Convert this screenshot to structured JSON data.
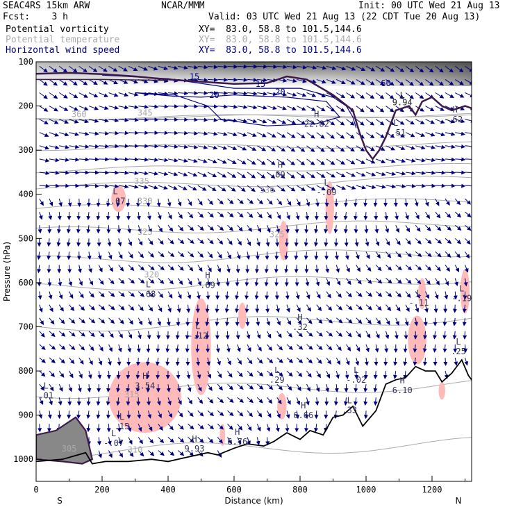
{
  "header": {
    "model": "SEAC4RS 15km ARW",
    "center": "NCAR/MMM",
    "init": "Init: 00 UTC Wed 21 Aug 13",
    "fcst_label": "Fcst:",
    "fcst_value": "3 h",
    "valid": "Valid: 03 UTC Wed 21 Aug 13 (22 CDT Tue 20 Aug 13)",
    "fields": [
      {
        "name": "Potential vorticity",
        "xy": "XY=  83.0, 58.8 to 101.5,144.6",
        "color": "#000000"
      },
      {
        "name": "Potential temperature",
        "xy": "XY=  83.0, 58.8 to 101.5,144.6",
        "color": "#aaaaaa"
      },
      {
        "name": "Horizontal wind speed",
        "xy": "XY=  83.0, 58.8 to 101.5,144.6",
        "color": "#000080"
      }
    ]
  },
  "chart_data": {
    "type": "cross-section",
    "xlabel": "Distance (km)",
    "ylabel": "Pressure (hPa)",
    "xlim": [
      0,
      1320
    ],
    "ylim": [
      1050,
      100
    ],
    "x_ticks": [
      "0",
      "200",
      "400",
      "600",
      "800",
      "1000",
      "1200"
    ],
    "x_tick_values": [
      0,
      200,
      400,
      600,
      800,
      1000,
      1200
    ],
    "y_ticks": [
      "100",
      "200",
      "300",
      "400",
      "500",
      "600",
      "700",
      "800",
      "900",
      "1000"
    ],
    "y_tick_values": [
      100,
      200,
      300,
      400,
      500,
      600,
      700,
      800,
      900,
      1000
    ],
    "endpoints": {
      "left": "S",
      "right": "N"
    },
    "colors": {
      "terrain": "#000000",
      "pv_contour": "#3d1a4a",
      "wind_speed": "#000080",
      "theta": "#aaaaaa",
      "shading": "#ffb6b6",
      "vectors": "#000080"
    },
    "terrain": [
      {
        "x": 0,
        "p": 1005
      },
      {
        "x": 80,
        "p": 1000
      },
      {
        "x": 150,
        "p": 985
      },
      {
        "x": 170,
        "p": 1010
      },
      {
        "x": 210,
        "p": 1005
      },
      {
        "x": 280,
        "p": 1005
      },
      {
        "x": 350,
        "p": 1000
      },
      {
        "x": 400,
        "p": 1005
      },
      {
        "x": 460,
        "p": 995
      },
      {
        "x": 520,
        "p": 985
      },
      {
        "x": 550,
        "p": 990
      },
      {
        "x": 600,
        "p": 975
      },
      {
        "x": 640,
        "p": 965
      },
      {
        "x": 690,
        "p": 970
      },
      {
        "x": 720,
        "p": 960
      },
      {
        "x": 760,
        "p": 940
      },
      {
        "x": 800,
        "p": 955
      },
      {
        "x": 830,
        "p": 935
      },
      {
        "x": 870,
        "p": 945
      },
      {
        "x": 900,
        "p": 905
      },
      {
        "x": 930,
        "p": 900
      },
      {
        "x": 960,
        "p": 880
      },
      {
        "x": 990,
        "p": 925
      },
      {
        "x": 1030,
        "p": 890
      },
      {
        "x": 1060,
        "p": 830
      },
      {
        "x": 1090,
        "p": 820
      },
      {
        "x": 1120,
        "p": 815
      },
      {
        "x": 1150,
        "p": 790
      },
      {
        "x": 1180,
        "p": 800
      },
      {
        "x": 1210,
        "p": 800
      },
      {
        "x": 1230,
        "p": 825
      },
      {
        "x": 1260,
        "p": 805
      },
      {
        "x": 1290,
        "p": 775
      },
      {
        "x": 1310,
        "p": 810
      },
      {
        "x": 1320,
        "p": 820
      }
    ],
    "theta_labels": [
      {
        "text": "360",
        "x": 130,
        "p": 225
      },
      {
        "text": "345",
        "x": 330,
        "p": 222
      },
      {
        "text": "335",
        "x": 320,
        "p": 377
      },
      {
        "text": "330",
        "x": 330,
        "p": 422
      },
      {
        "text": "330",
        "x": 700,
        "p": 397
      },
      {
        "text": "325",
        "x": 330,
        "p": 492
      },
      {
        "text": "325",
        "x": 730,
        "p": 497
      },
      {
        "text": "320",
        "x": 350,
        "p": 588
      },
      {
        "text": "315",
        "x": 290,
        "p": 860
      },
      {
        "text": "310",
        "x": 300,
        "p": 985
      },
      {
        "text": "305",
        "x": 100,
        "p": 982
      }
    ],
    "theta_lines_p": [
      228,
      228,
      295,
      345,
      385,
      435,
      485,
      550,
      610,
      700,
      850,
      985
    ],
    "wind_speed_labels": [
      {
        "text": "15",
        "x": 480,
        "p": 140
      },
      {
        "text": "15",
        "x": 680,
        "p": 157
      },
      {
        "text": "20",
        "x": 540,
        "p": 182
      },
      {
        "text": "20",
        "x": 740,
        "p": 175
      },
      {
        "text": "60",
        "x": 1060,
        "p": 155
      }
    ],
    "pv_labels": [
      {
        "text": "L",
        "x": 1110,
        "p": 182
      },
      {
        "text": "9.94",
        "x": 1110,
        "p": 198
      }
    ],
    "extrema": [
      {
        "kind": "H",
        "value": "22.82",
        "x": 850,
        "p": 225
      },
      {
        "kind": "H",
        "value": "89",
        "x": 740,
        "p": 340
      },
      {
        "kind": "L",
        "value": "-.07",
        "x": 240,
        "p": 400
      },
      {
        "kind": "L",
        "value": "-.09",
        "x": 880,
        "p": 380
      },
      {
        "kind": "L",
        "value": "-.51",
        "x": 1090,
        "p": 245
      },
      {
        "kind": "H",
        "value": ".62",
        "x": 1270,
        "p": 215
      },
      {
        "kind": "L",
        "value": ".68",
        "x": 340,
        "p": 610
      },
      {
        "kind": "H",
        "value": ".69",
        "x": 520,
        "p": 590
      },
      {
        "kind": "L",
        "value": "-.12",
        "x": 490,
        "p": 705
      },
      {
        "kind": "H",
        "value": ".32",
        "x": 800,
        "p": 685
      },
      {
        "kind": "L",
        "value": "-.11",
        "x": 1160,
        "p": 630
      },
      {
        "kind": "L",
        "value": "-.19",
        "x": 1290,
        "p": 620
      },
      {
        "kind": "L",
        "value": ".25",
        "x": 1280,
        "p": 740
      },
      {
        "kind": "H",
        "value": "3.54",
        "x": 330,
        "p": 818
      },
      {
        "kind": "L",
        "value": ".29",
        "x": 730,
        "p": 805
      },
      {
        "kind": "L",
        "value": "-.02",
        "x": 970,
        "p": 805
      },
      {
        "kind": "H",
        "value": "6.10",
        "x": 1110,
        "p": 828
      },
      {
        "kind": "L",
        "value": ".01",
        "x": 30,
        "p": 840
      },
      {
        "kind": "H",
        "value": "6.66",
        "x": 810,
        "p": 885
      },
      {
        "kind": "L",
        "value": ".33",
        "x": 950,
        "p": 873
      },
      {
        "kind": "L",
        "value": ".15",
        "x": 260,
        "p": 910
      },
      {
        "kind": "L",
        "value": "-.07",
        "x": 235,
        "p": 948
      },
      {
        "kind": "H",
        "value": "9.93",
        "x": 480,
        "p": 960
      },
      {
        "kind": "H",
        "value": "6.76",
        "x": 610,
        "p": 945
      }
    ],
    "shaded_regions": [
      {
        "cx": 250,
        "cp": 410,
        "rx": 22,
        "rp": 30
      },
      {
        "cx": 500,
        "cp": 745,
        "rx": 30,
        "rp": 110
      },
      {
        "cx": 330,
        "cp": 860,
        "rx": 110,
        "rp": 80
      },
      {
        "cx": 625,
        "cp": 675,
        "rx": 12,
        "rp": 30
      },
      {
        "cx": 750,
        "cp": 505,
        "rx": 14,
        "rp": 45
      },
      {
        "cx": 890,
        "cp": 430,
        "rx": 13,
        "rp": 60
      },
      {
        "cx": 745,
        "cp": 880,
        "rx": 14,
        "rp": 30
      },
      {
        "cx": 1155,
        "cp": 730,
        "rx": 28,
        "rp": 55
      },
      {
        "cx": 1170,
        "cp": 625,
        "rx": 12,
        "rp": 35
      },
      {
        "cx": 1300,
        "cp": 620,
        "rx": 14,
        "rp": 50
      },
      {
        "cx": 565,
        "cp": 945,
        "rx": 8,
        "rp": 25
      },
      {
        "cx": 1230,
        "cp": 845,
        "rx": 10,
        "rp": 20
      }
    ]
  }
}
